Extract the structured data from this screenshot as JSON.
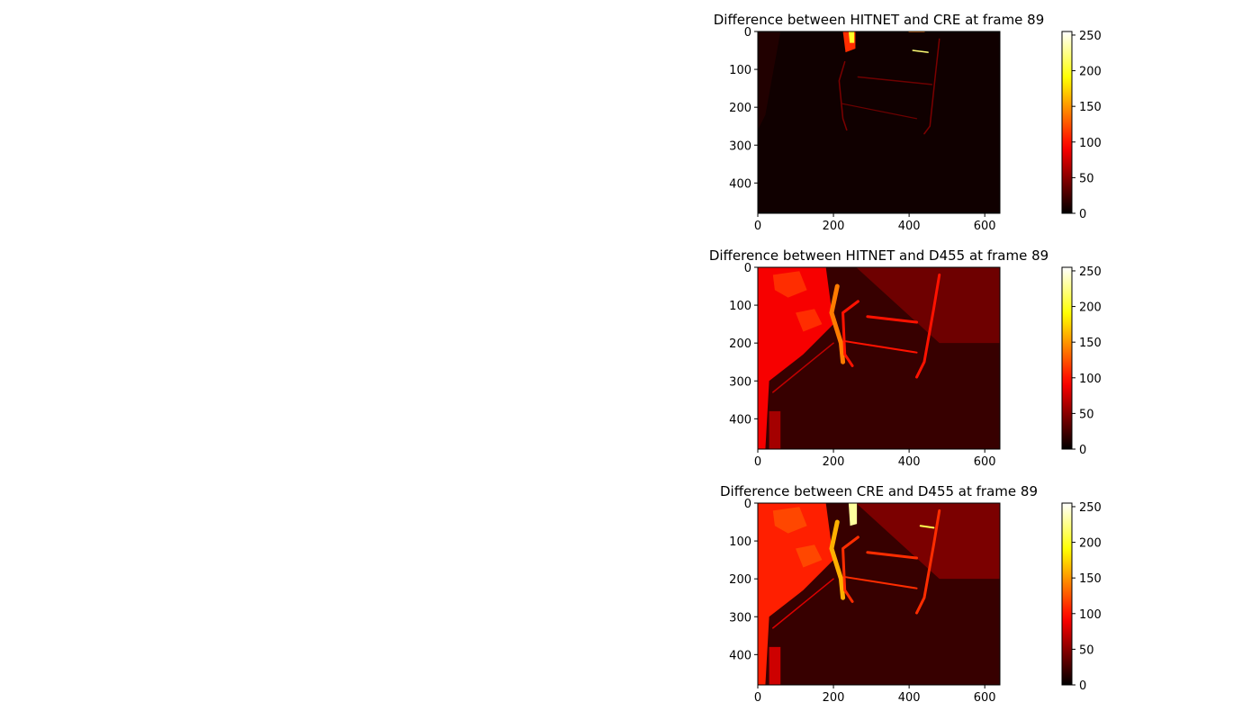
{
  "chart_data": [
    {
      "type": "heatmap",
      "title": "Difference between HITNET and CRE at frame 89",
      "xlabel": "",
      "ylabel": "",
      "xlim": [
        0,
        640
      ],
      "ylim": [
        480,
        0
      ],
      "xticks": [
        0,
        200,
        400,
        600
      ],
      "yticks": [
        0,
        100,
        200,
        300,
        400
      ],
      "colormap": "hot",
      "colorbar": {
        "min": 0,
        "max": 255,
        "ticks": [
          0,
          50,
          100,
          150,
          200,
          250
        ]
      },
      "values_description_level": {
        "background": 6,
        "chair_vertical_edges": 45,
        "chair_rail": 40,
        "hot_spot_top": 110,
        "left_region": 12
      }
    },
    {
      "type": "heatmap",
      "title": "Difference between HITNET and D455 at frame 89",
      "xlabel": "",
      "ylabel": "",
      "xlim": [
        0,
        640
      ],
      "ylim": [
        480,
        0
      ],
      "xticks": [
        0,
        200,
        400,
        600
      ],
      "yticks": [
        0,
        100,
        200,
        300,
        400
      ],
      "colormap": "hot",
      "colorbar": {
        "min": 0,
        "max": 255,
        "ticks": [
          0,
          50,
          100,
          150,
          200,
          250
        ]
      },
      "values_description_level": {
        "background": 15,
        "left_wall": 90,
        "wall_blobs": 110,
        "chair_edges": 100,
        "chair_arm": 140,
        "floor_far": 40,
        "floor_near": 20
      }
    },
    {
      "type": "heatmap",
      "title": "Difference between CRE and D455 at frame 89",
      "xlabel": "",
      "ylabel": "",
      "xlim": [
        0,
        640
      ],
      "ylim": [
        480,
        0
      ],
      "xticks": [
        0,
        200,
        400,
        600
      ],
      "yticks": [
        0,
        100,
        200,
        300,
        400
      ],
      "colormap": "hot",
      "colorbar": {
        "min": 0,
        "max": 255,
        "ticks": [
          0,
          50,
          100,
          150,
          200,
          250
        ]
      },
      "values_description_level": {
        "background": 15,
        "left_wall": 105,
        "wall_blobs": 120,
        "chair_edges": 110,
        "chair_arm": 160,
        "hot_spot_top": 230,
        "floor_far": 45,
        "floor_near": 20
      }
    }
  ]
}
